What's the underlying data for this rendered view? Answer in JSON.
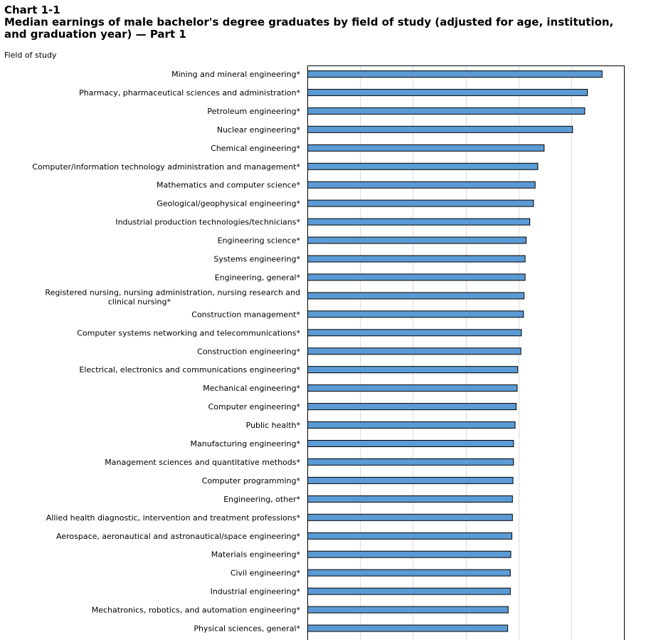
{
  "chart_label": "Chart 1-1",
  "chart_title": "Median earnings of male bachelor's degree graduates by field of study (adjusted for age, institution, and graduation year) — Part 1",
  "y_axis_caption": "Field of study",
  "colors": {
    "bar_fill": "#5b9bd5",
    "bar_stroke": "#000000",
    "grid": "#dddddd",
    "axis": "#000000"
  },
  "chart_data": {
    "type": "bar",
    "orientation": "horizontal",
    "title": "Median earnings of male bachelor's degree graduates by field of study (adjusted for age, institution, and graduation year) — Part 1",
    "ylabel": "Field of study",
    "xlabel": "",
    "grid": true,
    "xlim": [
      0,
      60
    ],
    "categories": [
      "Mining and mineral engineering*",
      "Pharmacy, pharmaceutical sciences and administration*",
      "Petroleum engineering*",
      "Nuclear engineering*",
      "Chemical engineering*",
      "Computer/information technology administration and management*",
      "Mathematics and computer science*",
      "Geological/geophysical engineering*",
      "Industrial production technologies/technicians*",
      "Engineering science*",
      "Systems engineering*",
      "Engineering, general*",
      "Registered nursing, nursing administration, nursing research and clinical nursing*",
      "Construction management*",
      "Computer systems networking and telecommunications*",
      "Construction engineering*",
      "Electrical, electronics and communications engineering*",
      "Mechanical engineering*",
      "Computer engineering*",
      "Public health*",
      "Manufacturing engineering*",
      "Management sciences and quantitative methods*",
      "Computer programming*",
      "Engineering, other*",
      "Allied health diagnostic, intervention and treatment professions*",
      "Aerospace, aeronautical and astronautical/space engineering*",
      "Materials engineering*",
      "Civil engineering*",
      "Industrial engineering*",
      "Mechatronics, robotics, and automation engineering*",
      "Physical sciences, general*"
    ],
    "values": [
      55.8,
      53.0,
      52.5,
      50.2,
      44.8,
      43.6,
      43.1,
      42.8,
      42.1,
      41.4,
      41.2,
      41.2,
      41.0,
      40.9,
      40.5,
      40.4,
      39.8,
      39.7,
      39.5,
      39.3,
      39.0,
      39.0,
      38.9,
      38.8,
      38.8,
      38.7,
      38.5,
      38.4,
      38.4,
      38.0,
      37.9
    ]
  }
}
